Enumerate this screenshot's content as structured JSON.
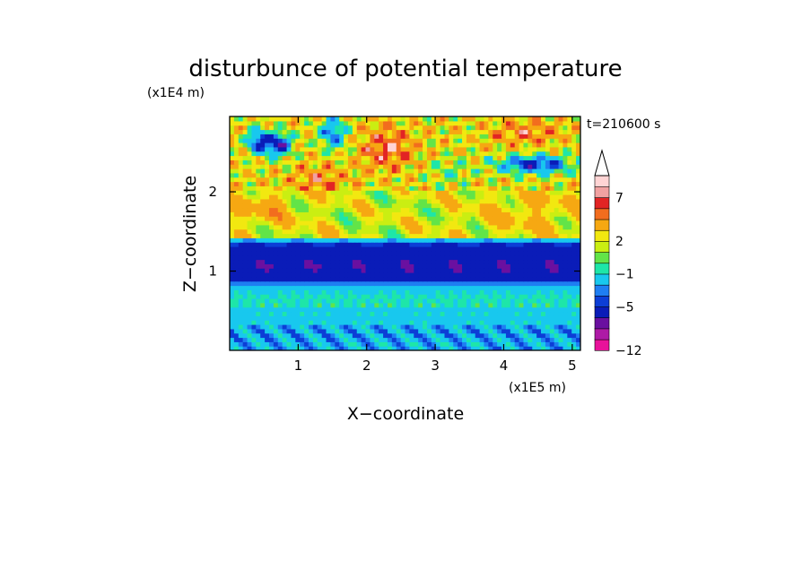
{
  "chart_data": {
    "type": "heatmap",
    "title": "disturbunce of potential temperature",
    "xlabel": "X−coordinate",
    "ylabel": "Z−coordinate",
    "x_unit": "(x1E5 m)",
    "y_unit": "(x1E4 m)",
    "time_label": "t=210600 s",
    "xlim": [
      0,
      5.12
    ],
    "ylim": [
      0,
      2.95
    ],
    "x_ticks": [
      1,
      2,
      3,
      4,
      5
    ],
    "x_tick_labels": [
      "1",
      "2",
      "3",
      "4",
      "5"
    ],
    "y_ticks": [
      1,
      2
    ],
    "y_tick_labels": [
      "1",
      "2"
    ],
    "colorbar": {
      "levels": [
        -12,
        -10,
        -8,
        -7,
        -5,
        -4,
        -3,
        -1,
        0,
        1,
        2,
        3,
        5,
        6,
        7,
        8,
        9
      ],
      "tick_values": [
        7,
        2,
        -1,
        -5,
        -12
      ],
      "tick_labels": [
        "7",
        "2",
        "−1",
        "−5",
        "−12"
      ],
      "colors": [
        "#e8129a",
        "#ae1aa6",
        "#6a10a0",
        "#0a1cb8",
        "#0c3ed6",
        "#1e7ef2",
        "#18c8ee",
        "#1ee6a8",
        "#62e448",
        "#caee12",
        "#f2e810",
        "#f6a812",
        "#f26d1e",
        "#e22424",
        "#f1a1a1",
        "#ffd4d4"
      ],
      "extend": "max"
    },
    "field_description": [
      {
        "z_range": [
          0,
          0.85
        ],
        "value_range": [
          -3,
          1
        ]
      },
      {
        "z_range": [
          0.85,
          1.4
        ],
        "value_range": [
          -7,
          -4
        ]
      },
      {
        "z_range": [
          1.4,
          2.0
        ],
        "value_range": [
          -1,
          6
        ]
      },
      {
        "z_range": [
          2.0,
          2.95
        ],
        "value_range": [
          -10,
          8
        ]
      }
    ]
  }
}
